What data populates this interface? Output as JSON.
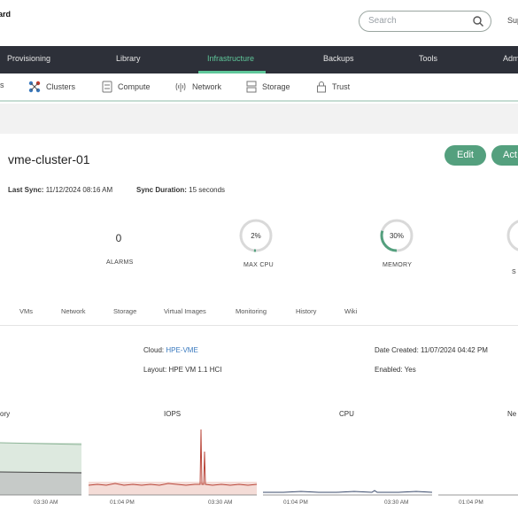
{
  "header": {
    "brand": "ard",
    "search_placeholder": "Search",
    "support": "Sup"
  },
  "nav": {
    "items": [
      "Provisioning",
      "Library",
      "Infrastructure",
      "Backups",
      "Tools",
      "Adm"
    ],
    "active": "Infrastructure",
    "accent": "#5fc79a"
  },
  "subnav": {
    "items": [
      "s",
      "Clusters",
      "Compute",
      "Network",
      "Storage",
      "Trust"
    ]
  },
  "cluster": {
    "name": "vme-cluster-01",
    "edit_label": "Edit",
    "actions_label": "Act",
    "last_sync_label": "Last Sync:",
    "last_sync_value": "11/12/2024 08:16 AM",
    "sync_duration_label": "Sync Duration:",
    "sync_duration_value": "15 seconds",
    "button_color": "#54a07e"
  },
  "stats": {
    "alarms_value": "0",
    "alarms_label": "ALARMS",
    "cpu_value": "2%",
    "cpu_label": "MAX CPU",
    "cpu_fraction": 0.02,
    "memory_value": "30%",
    "memory_label": "MEMORY",
    "memory_fraction": 0.3,
    "storage_label": "S"
  },
  "tabs": [
    "VMs",
    "Network",
    "Storage",
    "Virtual Images",
    "Monitoring",
    "History",
    "Wiki"
  ],
  "details": {
    "cloud_label": "Cloud:",
    "cloud_value": "HPE-VME",
    "layout_label": "Layout:",
    "layout_value": "HPE VM 1.1 HCI",
    "date_created_label": "Date Created:",
    "date_created_value": "11/07/2024 04:42 PM",
    "enabled_label": "Enabled:",
    "enabled_value": "Yes"
  },
  "charts": {
    "memory_title": "ory",
    "iops_title": "IOPS",
    "cpu_title": "CPU",
    "network_title": "Ne",
    "memory_ticks": [
      "03:30 AM"
    ],
    "iops_ticks": [
      "01:04 PM",
      "03:30 AM"
    ],
    "cpu_ticks": [
      "01:04 PM",
      "03:30 AM"
    ],
    "network_ticks": [
      "01:04 PM"
    ]
  }
}
